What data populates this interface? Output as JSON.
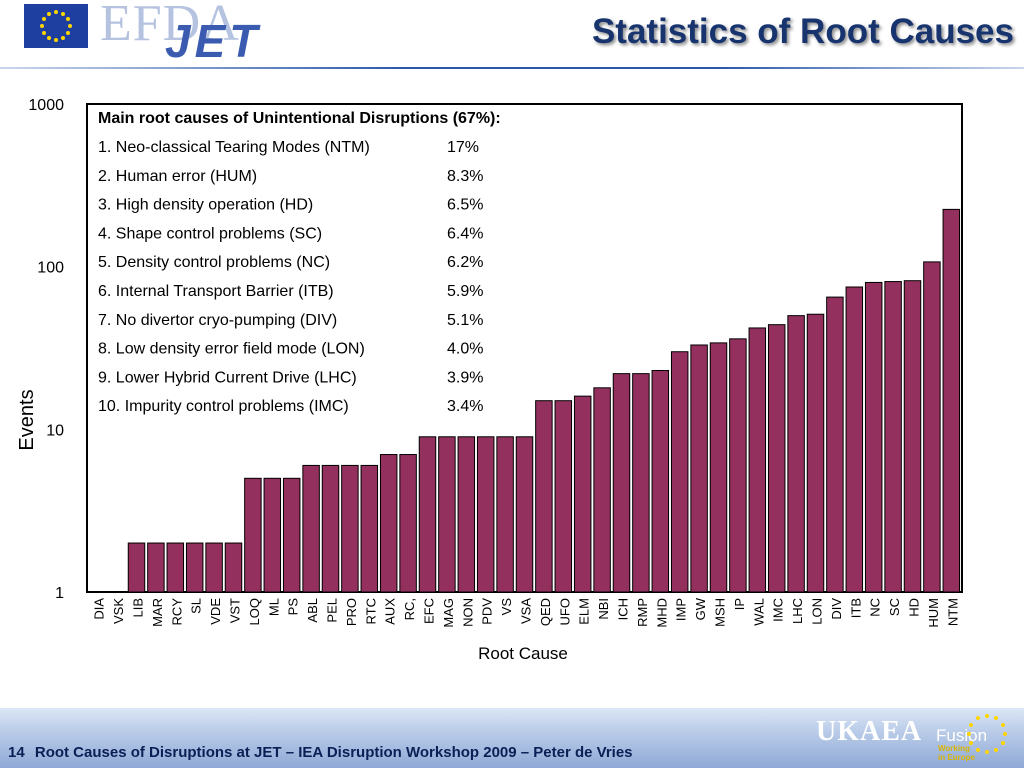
{
  "header": {
    "title": "Statistics of Root Causes",
    "logo_efda": "EFDA",
    "logo_jet": "JET"
  },
  "footer": {
    "page_number": "14",
    "text": "Root Causes of Disruptions at JET – IEA Disruption Workshop 2009 – Peter de Vries",
    "logo_ukaea": "UKAEA",
    "logo_fusion": "Fusion",
    "tagline_1": "Working",
    "tagline_2": "in Europe"
  },
  "colors": {
    "bar_fill": "#93305e",
    "title": "#17346e",
    "footer_band": "#8fa9d6"
  },
  "chart_data": {
    "type": "bar",
    "xlabel": "Root Cause",
    "ylabel": "Events",
    "yscale": "log",
    "ylim": [
      1,
      1000
    ],
    "yticks": [
      1,
      10,
      100,
      1000
    ],
    "categories": [
      "DIA",
      "VSK",
      "LIB",
      "MAR",
      "RCY",
      "SL",
      "VDE",
      "VST",
      "LOQ",
      "ML",
      "PS",
      "ABL",
      "PEL",
      "PRO",
      "RTC",
      "AUX",
      "RC,",
      "EFC",
      "MAG",
      "NON",
      "PDV",
      "VS",
      "VSA",
      "QED",
      "UFO",
      "ELM",
      "NBI",
      "ICH",
      "RMP",
      "MHD",
      "IMP",
      "GW",
      "MSH",
      "IP",
      "WAL",
      "IMC",
      "LHC",
      "LON",
      "DIV",
      "ITB",
      "NC",
      "SC",
      "HD",
      "HUM",
      "NTM"
    ],
    "values": [
      1,
      1,
      2,
      2,
      2,
      2,
      2,
      2,
      5,
      5,
      5,
      6,
      6,
      6,
      6,
      7,
      7,
      9,
      9,
      9,
      9,
      9,
      9,
      15,
      15,
      16,
      18,
      22,
      22,
      23,
      30,
      33,
      34,
      36,
      42,
      44,
      50,
      51,
      65,
      75,
      80,
      81,
      82,
      107,
      225
    ],
    "annotation": {
      "heading": "Main root causes of Unintentional Disruptions (67%):",
      "items": [
        {
          "label": "1. Neo-classical Tearing Modes (NTM)",
          "value": "17%"
        },
        {
          "label": "2. Human error (HUM)",
          "value": "8.3%"
        },
        {
          "label": "3. High density operation (HD)",
          "value": "6.5%"
        },
        {
          "label": "4. Shape control problems (SC)",
          "value": "6.4%"
        },
        {
          "label": "5. Density control problems (NC)",
          "value": "6.2%"
        },
        {
          "label": "6. Internal Transport Barrier (ITB)",
          "value": "5.9%"
        },
        {
          "label": "7. No divertor cryo-pumping (DIV)",
          "value": "5.1%"
        },
        {
          "label": "8. Low density error field mode (LON)",
          "value": "4.0%"
        },
        {
          "label": "9. Lower Hybrid Current Drive (LHC)",
          "value": "3.9%"
        },
        {
          "label": "10. Impurity control problems (IMC)",
          "value": "3.4%"
        }
      ]
    }
  }
}
